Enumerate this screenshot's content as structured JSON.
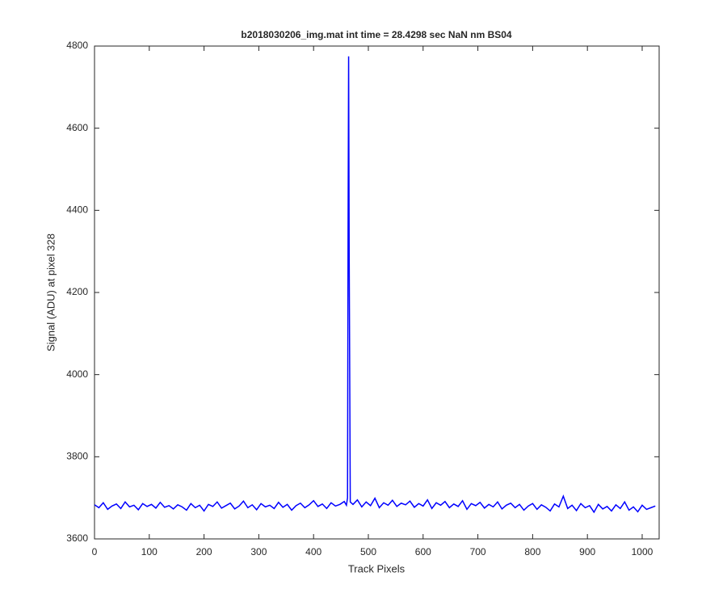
{
  "chart_data": {
    "type": "line",
    "title": "b2018030206_img.mat int time = 28.4298 sec  NaN nm BS04",
    "x_label": "Track Pixels",
    "y_label": "Signal (ADU) at pixel 328",
    "x": [
      0,
      8,
      16,
      24,
      32,
      40,
      48,
      56,
      64,
      72,
      80,
      88,
      96,
      104,
      112,
      120,
      128,
      136,
      144,
      152,
      160,
      168,
      176,
      184,
      192,
      200,
      208,
      216,
      224,
      232,
      240,
      248,
      256,
      264,
      272,
      280,
      288,
      296,
      304,
      312,
      320,
      328,
      336,
      344,
      352,
      360,
      368,
      376,
      384,
      392,
      400,
      408,
      416,
      424,
      432,
      440,
      448,
      456,
      460,
      462,
      463,
      464,
      465,
      467,
      472,
      480,
      488,
      496,
      504,
      512,
      520,
      528,
      536,
      544,
      552,
      560,
      568,
      576,
      584,
      592,
      600,
      608,
      616,
      624,
      632,
      640,
      648,
      656,
      664,
      672,
      680,
      688,
      696,
      704,
      712,
      720,
      728,
      736,
      744,
      752,
      760,
      768,
      776,
      784,
      792,
      800,
      808,
      816,
      824,
      832,
      840,
      848,
      856,
      864,
      872,
      880,
      888,
      896,
      904,
      912,
      920,
      928,
      936,
      944,
      952,
      960,
      968,
      976,
      984,
      992,
      1000,
      1008,
      1016,
      1024
    ],
    "series": [
      {
        "name": "signal",
        "color": "#0000ff",
        "values": [
          3683,
          3676,
          3688,
          3672,
          3680,
          3685,
          3674,
          3690,
          3678,
          3682,
          3671,
          3686,
          3679,
          3684,
          3675,
          3689,
          3677,
          3681,
          3673,
          3683,
          3678,
          3670,
          3686,
          3676,
          3682,
          3668,
          3684,
          3679,
          3690,
          3675,
          3681,
          3687,
          3673,
          3680,
          3692,
          3676,
          3683,
          3671,
          3686,
          3678,
          3682,
          3674,
          3689,
          3677,
          3684,
          3670,
          3681,
          3687,
          3676,
          3683,
          3693,
          3679,
          3685,
          3674,
          3688,
          3680,
          3684,
          3691,
          3682,
          3700,
          4350,
          4775,
          4300,
          3690,
          3684,
          3695,
          3678,
          3690,
          3681,
          3699,
          3676,
          3688,
          3682,
          3694,
          3679,
          3687,
          3683,
          3692,
          3677,
          3686,
          3680,
          3695,
          3674,
          3688,
          3682,
          3691,
          3676,
          3685,
          3679,
          3693,
          3672,
          3686,
          3681,
          3689,
          3675,
          3684,
          3678,
          3690,
          3673,
          3682,
          3687,
          3676,
          3684,
          3670,
          3680,
          3686,
          3672,
          3683,
          3677,
          3668,
          3685,
          3678,
          3704,
          3674,
          3682,
          3669,
          3686,
          3676,
          3681,
          3665,
          3684,
          3673,
          3679,
          3668,
          3683,
          3674,
          3690,
          3670,
          3678,
          3666,
          3682,
          3672,
          3676,
          3680
        ]
      }
    ],
    "xlim": [
      0,
      1031
    ],
    "ylim": [
      3600,
      4800
    ],
    "xticks": [
      0,
      100,
      200,
      300,
      400,
      500,
      600,
      700,
      800,
      900,
      1000
    ],
    "yticks": [
      3600,
      3800,
      4000,
      4200,
      4400,
      4600,
      4800
    ]
  }
}
